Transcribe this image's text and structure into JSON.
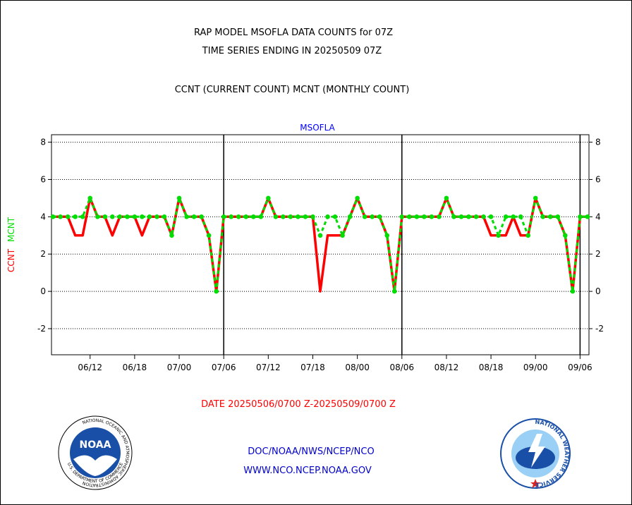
{
  "header": {
    "line1": "RAP MODEL MSOFLA DATA COUNTS for 07Z",
    "line2": "TIME SERIES ENDING IN 20250509 07Z",
    "line3": "CCNT (CURRENT COUNT) MCNT (MONTHLY COUNT)"
  },
  "footer": {
    "date_range": "DATE 20250506/0700 Z-20250509/0700 Z",
    "org": "DOC/NOAA/NWS/NCEP/NCO",
    "url": "WWW.NCO.NCEP.NOAA.GOV"
  },
  "logos": {
    "left": {
      "name": "NOAA",
      "ring_text": "NATIONAL OCEANIC AND ATMOSPHERIC ADMINISTRATION",
      "bottom_text": "U.S. DEPARTMENT OF COMMERCE"
    },
    "right": {
      "ring_text": "NATIONAL WEATHER SERVICE"
    }
  },
  "chart_data": {
    "type": "line",
    "title": "MSOFLA",
    "ylabel_left": "CCNT",
    "ylabel_right": "MCNT",
    "ylim": [
      -3.4,
      8.4
    ],
    "yticks": [
      -2,
      0,
      2,
      4,
      6,
      8
    ],
    "grid": true,
    "x_tick_labels": [
      "06/12",
      "06/18",
      "07/00",
      "07/06",
      "07/12",
      "07/18",
      "08/00",
      "08/06",
      "08/12",
      "08/18",
      "09/00",
      "09/06"
    ],
    "x_tick_index": [
      5,
      11,
      17,
      23,
      29,
      35,
      41,
      47,
      53,
      59,
      65,
      71
    ],
    "day_boundaries_index": [
      23,
      47,
      71
    ],
    "x_start_index": -0.2,
    "x_end_index": 72.2,
    "colors": {
      "ccnt": "#ff0000",
      "mcnt": "#00dd00",
      "axis_label": "#0000ff",
      "date": "#ff0000"
    },
    "series": [
      {
        "name": "CCNT",
        "values": [
          4,
          4,
          4,
          3,
          3,
          5,
          4,
          4,
          3,
          4,
          4,
          4,
          3,
          4,
          4,
          4,
          3,
          5,
          4,
          4,
          4,
          3,
          0,
          4,
          4,
          4,
          4,
          4,
          4,
          5,
          4,
          4,
          4,
          4,
          4,
          4,
          0,
          3,
          3,
          3,
          4,
          5,
          4,
          4,
          4,
          3,
          0,
          4,
          4,
          4,
          4,
          4,
          4,
          5,
          4,
          4,
          4,
          4,
          4,
          3,
          3,
          3,
          4,
          3,
          3,
          5,
          4,
          4,
          4,
          3,
          0,
          4,
          4
        ]
      },
      {
        "name": "MCNT",
        "values": [
          4,
          4,
          4,
          4,
          4,
          5,
          4,
          4,
          4,
          4,
          4,
          4,
          4,
          4,
          4,
          4,
          3,
          5,
          4,
          4,
          4,
          3,
          0,
          4,
          4,
          4,
          4,
          4,
          4,
          5,
          4,
          4,
          4,
          4,
          4,
          4,
          3,
          4,
          4,
          3,
          4,
          5,
          4,
          4,
          4,
          3,
          0,
          4,
          4,
          4,
          4,
          4,
          4,
          5,
          4,
          4,
          4,
          4,
          4,
          4,
          3,
          4,
          4,
          4,
          3,
          5,
          4,
          4,
          4,
          3,
          0,
          4,
          4
        ]
      }
    ]
  }
}
